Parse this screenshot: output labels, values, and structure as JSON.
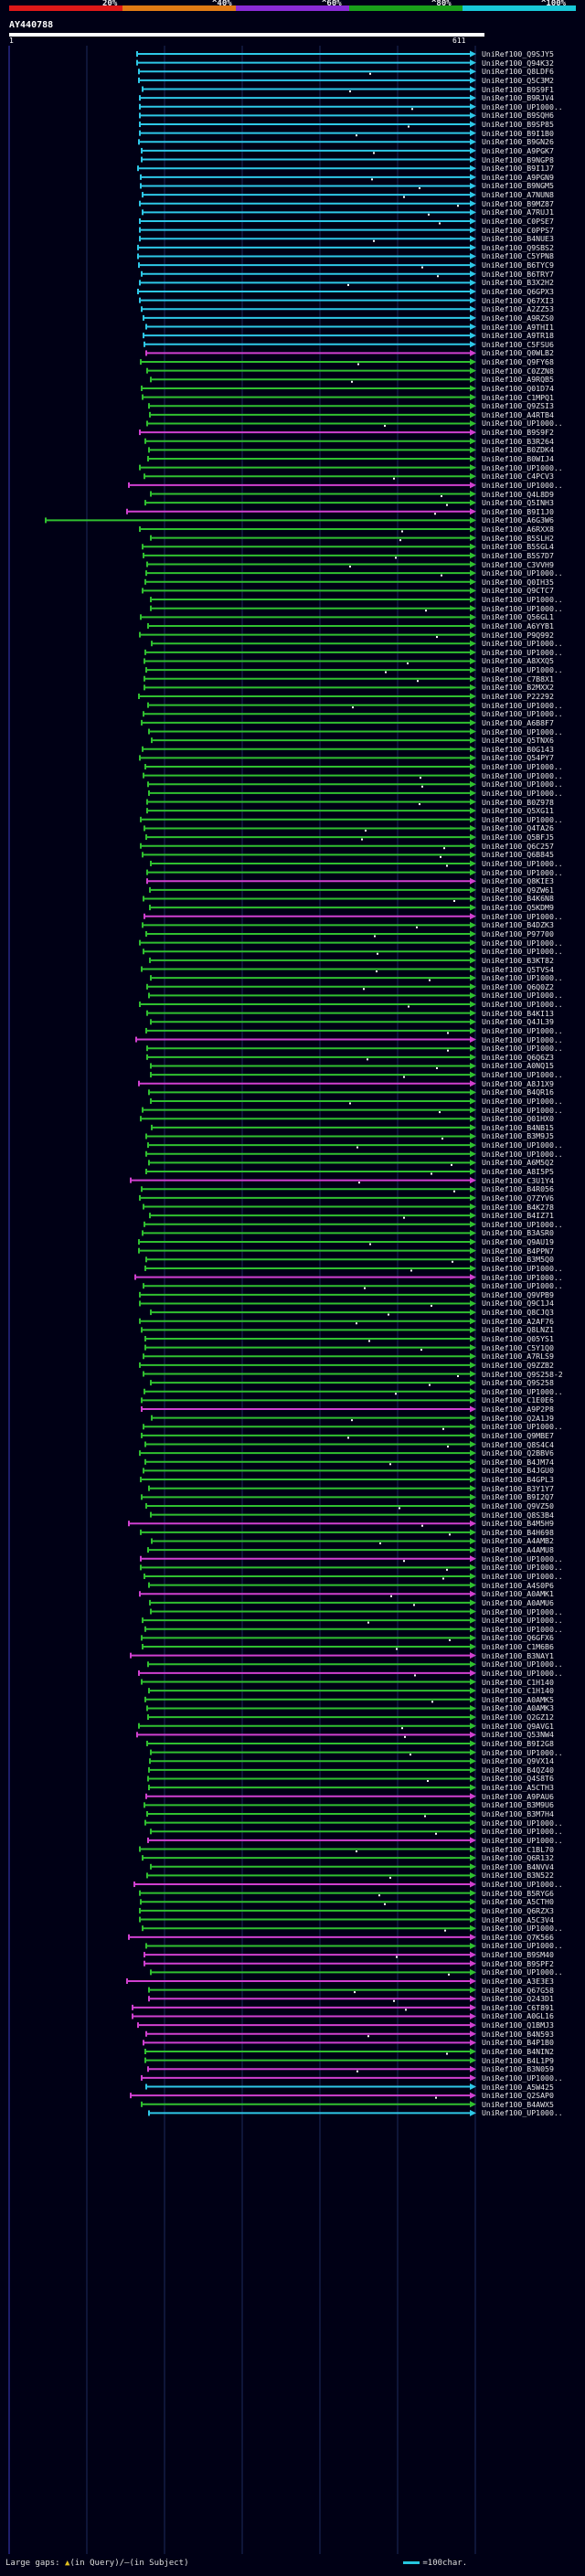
{
  "legend": {
    "ticks": [
      "20%",
      "^40%",
      "^60%",
      "^80%",
      "^100%"
    ],
    "colors": [
      "#dd1818",
      "#e07a14",
      "#8a2bd6",
      "#1aa01a",
      "#18c8d8"
    ]
  },
  "query": {
    "name": "AY440788",
    "start": "1",
    "end": "611"
  },
  "colors": {
    "cyan": "#2ec8e8",
    "green": "#30c030",
    "magenta": "#d040d0",
    "start_mark": "#c8c8c8"
  },
  "hits": [
    {
      "label": "UniRef100_Q9SJY5",
      "c": "cyan"
    },
    {
      "label": "UniRef100_Q94K32",
      "c": "cyan"
    },
    {
      "label": "UniRef100_Q8LDF6",
      "c": "cyan"
    },
    {
      "label": "UniRef100_Q5C3M2",
      "c": "cyan"
    },
    {
      "label": "UniRef100_B9S9F1",
      "c": "cyan"
    },
    {
      "label": "UniRef100_B9RJV4",
      "c": "cyan"
    },
    {
      "label": "UniRef100_UP1000..",
      "c": "cyan"
    },
    {
      "label": "UniRef100_B9SQH6",
      "c": "cyan"
    },
    {
      "label": "UniRef100_B9SP85",
      "c": "cyan"
    },
    {
      "label": "UniRef100_B9I1B0",
      "c": "cyan"
    },
    {
      "label": "UniRef100_B9GN26",
      "c": "cyan"
    },
    {
      "label": "UniRef100_A9PGK7",
      "c": "cyan"
    },
    {
      "label": "UniRef100_B9NGP8",
      "c": "cyan"
    },
    {
      "label": "UniRef100_B9I1J7",
      "c": "cyan"
    },
    {
      "label": "UniRef100_A9PGN9",
      "c": "cyan"
    },
    {
      "label": "UniRef100_B9NGM5",
      "c": "cyan"
    },
    {
      "label": "UniRef100_A7NUN8",
      "c": "cyan"
    },
    {
      "label": "UniRef100_B9MZ87",
      "c": "cyan"
    },
    {
      "label": "UniRef100_A7RUJ1",
      "c": "cyan"
    },
    {
      "label": "UniRef100_C0PSE7",
      "c": "cyan"
    },
    {
      "label": "UniRef100_C0PPS7",
      "c": "cyan"
    },
    {
      "label": "UniRef100_B4NUE3",
      "c": "cyan"
    },
    {
      "label": "UniRef100_Q9SBS2",
      "c": "cyan"
    },
    {
      "label": "UniRef100_C5YPN8",
      "c": "cyan"
    },
    {
      "label": "UniRef100_B6TYC9",
      "c": "cyan"
    },
    {
      "label": "UniRef100_B6TRY7",
      "c": "cyan"
    },
    {
      "label": "UniRef100_B3X2H2",
      "c": "cyan"
    },
    {
      "label": "UniRef100_Q6GPX3",
      "c": "cyan"
    },
    {
      "label": "UniRef100_Q67XI3",
      "c": "cyan"
    },
    {
      "label": "UniRef100_A2ZZ53",
      "c": "cyan"
    },
    {
      "label": "UniRef100_A9RZS0",
      "c": "cyan"
    },
    {
      "label": "UniRef100_A9THI1",
      "c": "cyan"
    },
    {
      "label": "UniRef100_A9TR18",
      "c": "cyan"
    },
    {
      "label": "UniRef100_C5FSU6",
      "c": "cyan"
    },
    {
      "label": "UniRef100_Q0WLB2",
      "c": "magenta"
    },
    {
      "label": "UniRef100_Q9FY68",
      "c": "green"
    },
    {
      "label": "UniRef100_C0ZZN8",
      "c": "green"
    },
    {
      "label": "UniRef100_A9RQB5",
      "c": "green"
    },
    {
      "label": "UniRef100_Q01D74",
      "c": "green"
    },
    {
      "label": "UniRef100_C1MPQ1",
      "c": "green"
    },
    {
      "label": "UniRef100_Q9ZSI3",
      "c": "green"
    },
    {
      "label": "UniRef100_A4RTB4",
      "c": "green"
    },
    {
      "label": "UniRef100_UP1000..",
      "c": "green"
    },
    {
      "label": "UniRef100_B9S9F2",
      "c": "magenta"
    },
    {
      "label": "UniRef100_B3R264",
      "c": "green"
    },
    {
      "label": "UniRef100_B0ZDK4",
      "c": "green"
    },
    {
      "label": "UniRef100_B0WIJ4",
      "c": "green"
    },
    {
      "label": "UniRef100_UP1000..",
      "c": "green"
    },
    {
      "label": "UniRef100_C4PCV3",
      "c": "green"
    },
    {
      "label": "UniRef100_UP1000..",
      "c": "magenta"
    },
    {
      "label": "UniRef100_Q4L8D9",
      "c": "green"
    },
    {
      "label": "UniRef100_Q5INH3",
      "c": "green"
    },
    {
      "label": "UniRef100_B9I1J0",
      "c": "magenta"
    },
    {
      "label": "UniRef100_A6G3W6",
      "c": "green"
    },
    {
      "label": "UniRef100_A6RXX8",
      "c": "green"
    },
    {
      "label": "UniRef100_B5SLH2",
      "c": "green"
    },
    {
      "label": "UniRef100_B5SGL4",
      "c": "green"
    },
    {
      "label": "UniRef100_B5S7D7",
      "c": "green"
    },
    {
      "label": "UniRef100_C3VVH9",
      "c": "green"
    },
    {
      "label": "UniRef100_UP1000..",
      "c": "green"
    },
    {
      "label": "UniRef100_Q0IH35",
      "c": "green"
    },
    {
      "label": "UniRef100_Q9CTC7",
      "c": "green"
    },
    {
      "label": "UniRef100_UP1000..",
      "c": "green"
    },
    {
      "label": "UniRef100_UP1000..",
      "c": "green"
    },
    {
      "label": "UniRef100_Q56GL1",
      "c": "green"
    },
    {
      "label": "UniRef100_A6YYB1",
      "c": "green"
    },
    {
      "label": "UniRef100_P9Q992",
      "c": "green"
    },
    {
      "label": "UniRef100_UP1000..",
      "c": "green"
    },
    {
      "label": "UniRef100_UP1000..",
      "c": "green"
    },
    {
      "label": "UniRef100_A8XXQ5",
      "c": "green"
    },
    {
      "label": "UniRef100_UP1000..",
      "c": "green"
    },
    {
      "label": "UniRef100_C7B8X1",
      "c": "green"
    },
    {
      "label": "UniRef100_B2MXX2",
      "c": "green"
    },
    {
      "label": "UniRef100_P22292",
      "c": "green"
    },
    {
      "label": "UniRef100_UP1000..",
      "c": "green"
    },
    {
      "label": "UniRef100_UP1000..",
      "c": "green"
    },
    {
      "label": "UniRef100_A6B8F7",
      "c": "green"
    },
    {
      "label": "UniRef100_UP1000..",
      "c": "green"
    },
    {
      "label": "UniRef100_Q5TNX6",
      "c": "green"
    },
    {
      "label": "UniRef100_B0G143",
      "c": "green"
    },
    {
      "label": "UniRef100_Q54PY7",
      "c": "green"
    },
    {
      "label": "UniRef100_UP1000..",
      "c": "green"
    },
    {
      "label": "UniRef100_UP1000..",
      "c": "green"
    },
    {
      "label": "UniRef100_UP1000..",
      "c": "green"
    },
    {
      "label": "UniRef100_UP1000..",
      "c": "green"
    },
    {
      "label": "UniRef100_B0Z978",
      "c": "green"
    },
    {
      "label": "UniRef100_Q5XG11",
      "c": "green"
    },
    {
      "label": "UniRef100_UP1000..",
      "c": "green"
    },
    {
      "label": "UniRef100_Q4TA26",
      "c": "green"
    },
    {
      "label": "UniRef100_Q5BFJ5",
      "c": "green"
    },
    {
      "label": "UniRef100_Q6C257",
      "c": "green"
    },
    {
      "label": "UniRef100_Q6B845",
      "c": "green"
    },
    {
      "label": "UniRef100_UP1000..",
      "c": "green"
    },
    {
      "label": "UniRef100_UP1000..",
      "c": "green"
    },
    {
      "label": "UniRef100_Q8KIE3",
      "c": "magenta"
    },
    {
      "label": "UniRef100_Q9ZW61",
      "c": "green"
    },
    {
      "label": "UniRef100_B4K6N8",
      "c": "green"
    },
    {
      "label": "UniRef100_Q5KDM9",
      "c": "green"
    },
    {
      "label": "UniRef100_UP1000..",
      "c": "magenta"
    },
    {
      "label": "UniRef100_B4DZK3",
      "c": "green"
    },
    {
      "label": "UniRef100_P97700",
      "c": "green"
    },
    {
      "label": "UniRef100_UP1000..",
      "c": "green"
    },
    {
      "label": "UniRef100_UP1000..",
      "c": "green"
    },
    {
      "label": "UniRef100_B3KT82",
      "c": "green"
    },
    {
      "label": "UniRef100_Q5TVS4",
      "c": "green"
    },
    {
      "label": "UniRef100_UP1000..",
      "c": "green"
    },
    {
      "label": "UniRef100_Q6Q0Z2",
      "c": "green"
    },
    {
      "label": "UniRef100_UP1000..",
      "c": "green"
    },
    {
      "label": "UniRef100_UP1000..",
      "c": "green"
    },
    {
      "label": "UniRef100_B4KI13",
      "c": "green"
    },
    {
      "label": "UniRef100_Q4JL39",
      "c": "green"
    },
    {
      "label": "UniRef100_UP1000..",
      "c": "green"
    },
    {
      "label": "UniRef100_UP1000..",
      "c": "magenta"
    },
    {
      "label": "UniRef100_UP1000..",
      "c": "green"
    },
    {
      "label": "UniRef100_Q6Q6Z3",
      "c": "green"
    },
    {
      "label": "UniRef100_A0NQ15",
      "c": "green"
    },
    {
      "label": "UniRef100_UP1000..",
      "c": "green"
    },
    {
      "label": "UniRef100_A8J1X9",
      "c": "magenta"
    },
    {
      "label": "UniRef100_B4QR16",
      "c": "green"
    },
    {
      "label": "UniRef100_UP1000..",
      "c": "green"
    },
    {
      "label": "UniRef100_UP1000..",
      "c": "green"
    },
    {
      "label": "UniRef100_Q01HX0",
      "c": "green"
    },
    {
      "label": "UniRef100_B4NB15",
      "c": "green"
    },
    {
      "label": "UniRef100_B3M9J5",
      "c": "green"
    },
    {
      "label": "UniRef100_UP1000..",
      "c": "green"
    },
    {
      "label": "UniRef100_UP1000..",
      "c": "green"
    },
    {
      "label": "UniRef100_A6M5Q2",
      "c": "green"
    },
    {
      "label": "UniRef100_A8I5P5",
      "c": "green"
    },
    {
      "label": "UniRef100_C3U1Y4",
      "c": "magenta"
    },
    {
      "label": "UniRef100_B4R056",
      "c": "green"
    },
    {
      "label": "UniRef100_Q7ZYV6",
      "c": "green"
    },
    {
      "label": "UniRef100_B4K278",
      "c": "green"
    },
    {
      "label": "UniRef100_B4IZ71",
      "c": "green"
    },
    {
      "label": "UniRef100_UP1000..",
      "c": "green"
    },
    {
      "label": "UniRef100_B3ASR0",
      "c": "green"
    },
    {
      "label": "UniRef100_Q9AU19",
      "c": "green"
    },
    {
      "label": "UniRef100_B4PPN7",
      "c": "green"
    },
    {
      "label": "UniRef100_B3M5Q0",
      "c": "green"
    },
    {
      "label": "UniRef100_UP1000..",
      "c": "green"
    },
    {
      "label": "UniRef100_UP1000..",
      "c": "magenta"
    },
    {
      "label": "UniRef100_UP1000..",
      "c": "green"
    },
    {
      "label": "UniRef100_Q9VPB9",
      "c": "green"
    },
    {
      "label": "UniRef100_Q9C1J4",
      "c": "green"
    },
    {
      "label": "UniRef100_Q8CJQ3",
      "c": "green"
    },
    {
      "label": "UniRef100_A2AF76",
      "c": "green"
    },
    {
      "label": "UniRef100_Q8LNZ1",
      "c": "green"
    },
    {
      "label": "UniRef100_Q05YS1",
      "c": "green"
    },
    {
      "label": "UniRef100_C5Y1Q0",
      "c": "green"
    },
    {
      "label": "UniRef100_A7RLS9",
      "c": "green"
    },
    {
      "label": "UniRef100_Q9ZZB2",
      "c": "green"
    },
    {
      "label": "UniRef100_Q9S258-2",
      "c": "green"
    },
    {
      "label": "UniRef100_Q9S258",
      "c": "green"
    },
    {
      "label": "UniRef100_UP1000..",
      "c": "green"
    },
    {
      "label": "UniRef100_C1E0E6",
      "c": "green"
    },
    {
      "label": "UniRef100_A9P2P8",
      "c": "magenta"
    },
    {
      "label": "UniRef100_Q2A1J9",
      "c": "green"
    },
    {
      "label": "UniRef100_UP1000..",
      "c": "green"
    },
    {
      "label": "UniRef100_Q9MBE7",
      "c": "green"
    },
    {
      "label": "UniRef100_Q8S4C4",
      "c": "green"
    },
    {
      "label": "UniRef100_Q2BBV6",
      "c": "green"
    },
    {
      "label": "UniRef100_B4JM74",
      "c": "green"
    },
    {
      "label": "UniRef100_B4JGU0",
      "c": "green"
    },
    {
      "label": "UniRef100_B4GPL3",
      "c": "green"
    },
    {
      "label": "UniRef100_B3Y1Y7",
      "c": "green"
    },
    {
      "label": "UniRef100_B9I2Q7",
      "c": "green"
    },
    {
      "label": "UniRef100_Q9VZ50",
      "c": "green"
    },
    {
      "label": "UniRef100_Q8S3B4",
      "c": "green"
    },
    {
      "label": "UniRef100_B4M5H9",
      "c": "magenta"
    },
    {
      "label": "UniRef100_B4H698",
      "c": "green"
    },
    {
      "label": "UniRef100_A4AMB2",
      "c": "green"
    },
    {
      "label": "UniRef100_A4AMU8",
      "c": "green"
    },
    {
      "label": "UniRef100_UP1000..",
      "c": "magenta"
    },
    {
      "label": "UniRef100_UP1000..",
      "c": "green"
    },
    {
      "label": "UniRef100_UP1000..",
      "c": "green"
    },
    {
      "label": "UniRef100_A4S0P6",
      "c": "green"
    },
    {
      "label": "UniRef100_A0AMK1",
      "c": "magenta"
    },
    {
      "label": "UniRef100_A0AMU6",
      "c": "green"
    },
    {
      "label": "UniRef100_UP1000..",
      "c": "green"
    },
    {
      "label": "UniRef100_UP1000..",
      "c": "green"
    },
    {
      "label": "UniRef100_UP1000..",
      "c": "green"
    },
    {
      "label": "UniRef100_Q6GFX6",
      "c": "green"
    },
    {
      "label": "UniRef100_C1M6B6",
      "c": "green"
    },
    {
      "label": "UniRef100_B3NAY1",
      "c": "magenta"
    },
    {
      "label": "UniRef100_UP1000..",
      "c": "green"
    },
    {
      "label": "UniRef100_UP1000..",
      "c": "magenta"
    },
    {
      "label": "UniRef100_C1H140",
      "c": "green"
    },
    {
      "label": "UniRef100_C1H140",
      "c": "green"
    },
    {
      "label": "UniRef100_A0AMK5",
      "c": "green"
    },
    {
      "label": "UniRef100_A0AMK3",
      "c": "green"
    },
    {
      "label": "UniRef100_Q2GZ12",
      "c": "green"
    },
    {
      "label": "UniRef100_Q9AVG1",
      "c": "green"
    },
    {
      "label": "UniRef100_Q53NW4",
      "c": "magenta"
    },
    {
      "label": "UniRef100_B9I2G8",
      "c": "green"
    },
    {
      "label": "UniRef100_UP1000..",
      "c": "green"
    },
    {
      "label": "UniRef100_Q9VX14",
      "c": "green"
    },
    {
      "label": "UniRef100_B4QZ40",
      "c": "green"
    },
    {
      "label": "UniRef100_Q4S8T6",
      "c": "green"
    },
    {
      "label": "UniRef100_A5CTH3",
      "c": "green"
    },
    {
      "label": "UniRef100_A9PAU6",
      "c": "magenta"
    },
    {
      "label": "UniRef100_B3M9U6",
      "c": "green"
    },
    {
      "label": "UniRef100_B3M7H4",
      "c": "green"
    },
    {
      "label": "UniRef100_UP1000..",
      "c": "green"
    },
    {
      "label": "UniRef100_UP1000..",
      "c": "green"
    },
    {
      "label": "UniRef100_UP1000..",
      "c": "magenta"
    },
    {
      "label": "UniRef100_C1BL70",
      "c": "green"
    },
    {
      "label": "UniRef100_Q6R132",
      "c": "green"
    },
    {
      "label": "UniRef100_B4NVV4",
      "c": "green"
    },
    {
      "label": "UniRef100_B3N522",
      "c": "green"
    },
    {
      "label": "UniRef100_UP1000..",
      "c": "magenta"
    },
    {
      "label": "UniRef100_B5RYG6",
      "c": "green"
    },
    {
      "label": "UniRef100_A5CTH0",
      "c": "green"
    },
    {
      "label": "UniRef100_Q6RZX3",
      "c": "green"
    },
    {
      "label": "UniRef100_A5C3V4",
      "c": "green"
    },
    {
      "label": "UniRef100_UP1000..",
      "c": "green"
    },
    {
      "label": "UniRef100_Q7K566",
      "c": "magenta"
    },
    {
      "label": "UniRef100_UP1000..",
      "c": "green"
    },
    {
      "label": "UniRef100_B9SM40",
      "c": "magenta"
    },
    {
      "label": "UniRef100_B9SPF2",
      "c": "magenta"
    },
    {
      "label": "UniRef100_UP1000..",
      "c": "green"
    },
    {
      "label": "UniRef100_A3E3E3",
      "c": "magenta"
    },
    {
      "label": "UniRef100_Q67G58",
      "c": "green"
    },
    {
      "label": "UniRef100_Q243D1",
      "c": "magenta"
    },
    {
      "label": "UniRef100_C6T891",
      "c": "magenta"
    },
    {
      "label": "UniRef100_A0GL16",
      "c": "magenta"
    },
    {
      "label": "UniRef100_Q1BMJ3",
      "c": "magenta"
    },
    {
      "label": "UniRef100_B4N593",
      "c": "magenta"
    },
    {
      "label": "UniRef100_B4P1B0",
      "c": "magenta"
    },
    {
      "label": "UniRef100_B4NIN2",
      "c": "green"
    },
    {
      "label": "UniRef100_B4L1P9",
      "c": "green"
    },
    {
      "label": "UniRef100_B3N059",
      "c": "magenta"
    },
    {
      "label": "UniRef100_UP1000..",
      "c": "magenta"
    },
    {
      "label": "UniRef100_A5W425",
      "c": "cyan"
    },
    {
      "label": "UniRef100_Q2SAP0",
      "c": "magenta"
    },
    {
      "label": "UniRef100_B4AWX5",
      "c": "green"
    },
    {
      "label": "UniRef100_UP1000..",
      "c": "cyan"
    }
  ],
  "footer": {
    "gaps_label": "Large gaps:",
    "in_query": "(in Query)/",
    "in_subject": "(in Subject)",
    "scale_label": "=100char."
  }
}
